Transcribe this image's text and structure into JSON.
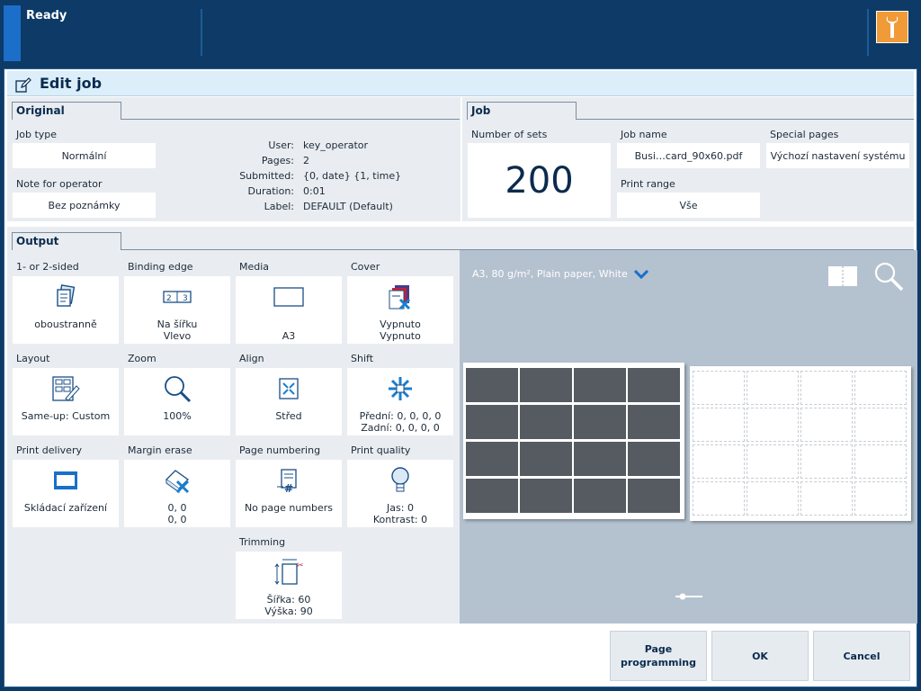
{
  "status": {
    "text": "Ready"
  },
  "dialog": {
    "title": "Edit job"
  },
  "original": {
    "tab": "Original",
    "job_type": {
      "label": "Job type",
      "value": "Normální"
    },
    "note": {
      "label": "Note for operator",
      "value": "Bez poznámky"
    },
    "info": [
      {
        "key": "User:",
        "value": "key_operator"
      },
      {
        "key": "Pages:",
        "value": "2"
      },
      {
        "key": "Submitted:",
        "value": "{0, date} {1, time}"
      },
      {
        "key": "Duration:",
        "value": "0:01"
      },
      {
        "key": "Label:",
        "value": "DEFAULT (Default)"
      }
    ]
  },
  "job": {
    "tab": "Job",
    "sets": {
      "label": "Number of sets",
      "value": "200"
    },
    "name": {
      "label": "Job name",
      "value": "Busi…card_90x60.pdf"
    },
    "range": {
      "label": "Print range",
      "value": "Vše"
    },
    "special": {
      "label": "Special pages",
      "value": "Výchozí nastavení systému"
    }
  },
  "output": {
    "tab": "Output",
    "tiles": [
      {
        "label": "1- or 2-sided",
        "v1": "oboustranně",
        "v2": "",
        "icon": "duplex-icon"
      },
      {
        "label": "Binding edge",
        "v1": "Na šířku",
        "v2": "Vlevo",
        "icon": "binding-edge-icon"
      },
      {
        "label": "Media",
        "v1": "A3",
        "v2": "",
        "icon": "media-icon"
      },
      {
        "label": "Cover",
        "v1": "Vypnuto",
        "v2": "Vypnuto",
        "icon": "cover-icon"
      },
      {
        "label": "Layout",
        "v1": "Same-up: Custom",
        "v2": "",
        "icon": "layout-icon"
      },
      {
        "label": "Zoom",
        "v1": "100%",
        "v2": "",
        "icon": "zoom-icon"
      },
      {
        "label": "Align",
        "v1": "Střed",
        "v2": "",
        "icon": "align-icon"
      },
      {
        "label": "Shift",
        "v1": "Přední: 0, 0, 0, 0",
        "v2": "Zadní: 0, 0, 0, 0",
        "icon": "shift-icon"
      },
      {
        "label": "Print delivery",
        "v1": "Skládací zařízení",
        "v2": "",
        "icon": "delivery-icon"
      },
      {
        "label": "Margin erase",
        "v1": "0, 0",
        "v2": "0, 0",
        "icon": "margin-erase-icon"
      },
      {
        "label": "Page numbering",
        "v1": "No page numbers",
        "v2": "",
        "icon": "page-numbering-icon"
      },
      {
        "label": "Print quality",
        "v1": "Jas: 0",
        "v2": "Kontrast: 0",
        "icon": "print-quality-icon"
      },
      {
        "label": "Trimming",
        "v1": "Šířka: 60",
        "v2": "Výška: 90",
        "icon": "trimming-icon"
      }
    ]
  },
  "preview": {
    "media": "A3, 80 g/m², Plain paper, White"
  },
  "buttons": {
    "page_programming": "Page programming",
    "ok": "OK",
    "cancel": "Cancel"
  }
}
